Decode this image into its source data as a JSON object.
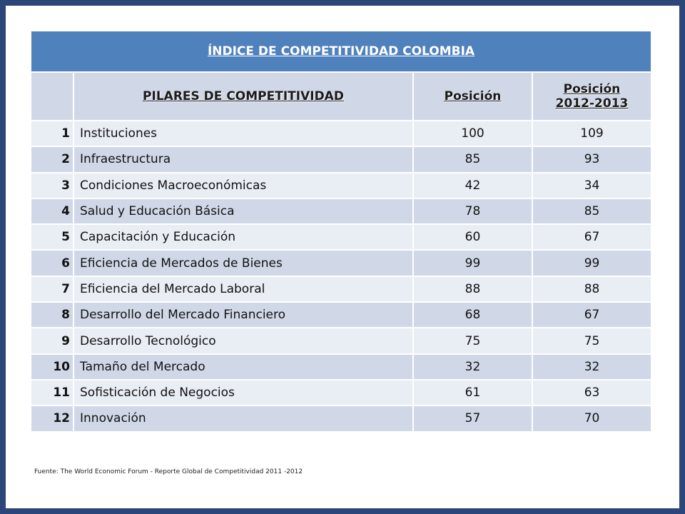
{
  "table": {
    "title": "ÍNDICE DE COMPETITIVIDAD COLOMBIA",
    "header": [
      "PILARES DE COMPETITIVIDAD",
      "Posición",
      [
        "Posición",
        "2012-2013"
      ]
    ],
    "rows": [
      [
        1,
        "Instituciones",
        100,
        109
      ],
      [
        2,
        "Infraestructura",
        85,
        93
      ],
      [
        3,
        "Condiciones Macroeconómicas",
        42,
        34
      ],
      [
        4,
        "Salud y Educación Básica",
        78,
        85
      ],
      [
        5,
        "Capacitación y Educación",
        60,
        67
      ],
      [
        6,
        "Eficiencia de Mercados de Bienes",
        99,
        99
      ],
      [
        7,
        "Eficiencia del Mercado Laboral",
        88,
        88
      ],
      [
        8,
        "Desarrollo del Mercado Financiero",
        68,
        67
      ],
      [
        9,
        "Desarrollo Tecnológico",
        75,
        75
      ],
      [
        10,
        "Tamaño del Mercado",
        32,
        32
      ],
      [
        11,
        "Sofisticación de Negocios",
        61,
        63
      ],
      [
        12,
        "Innovación",
        57,
        70
      ]
    ]
  },
  "source": "Fuente: The World Economic Forum  - Reporte Global de Competitividad 2011 -2012"
}
